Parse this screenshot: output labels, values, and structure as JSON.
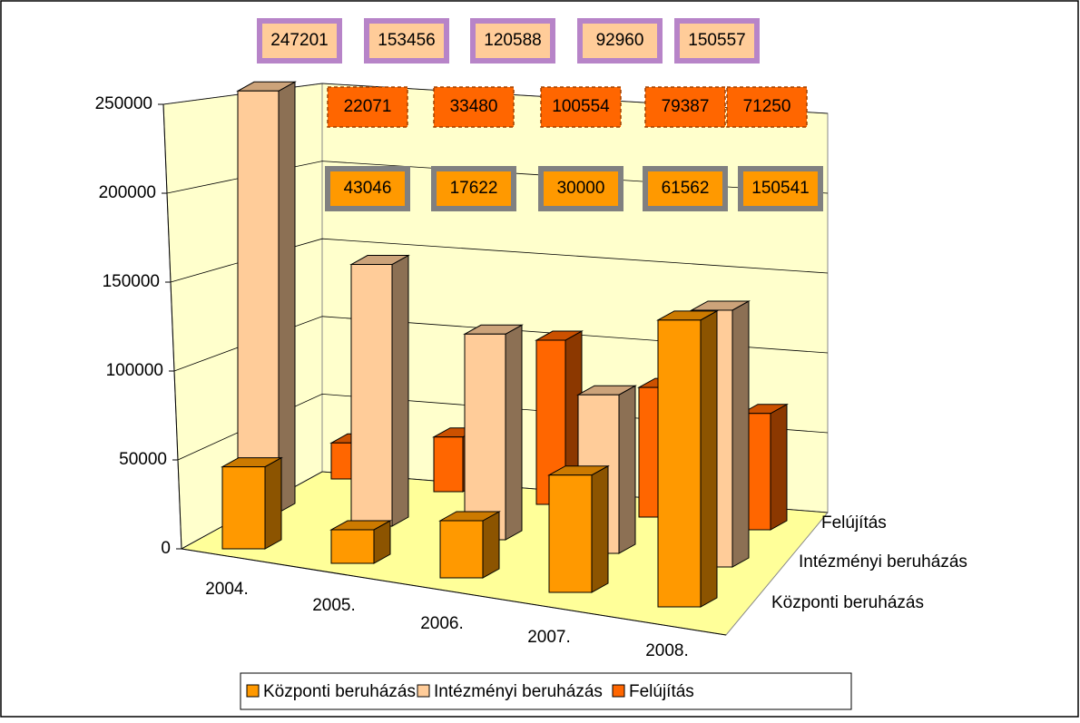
{
  "chart_data": {
    "type": "bar3d",
    "categories": [
      "2004.",
      "2005.",
      "2006.",
      "2007.",
      "2008."
    ],
    "series": [
      {
        "name": "Központi beruházás",
        "color": "#FF9900",
        "values": [
          43046,
          17622,
          30000,
          61562,
          150541
        ]
      },
      {
        "name": "Intézményi beruházás",
        "color": "#FFCC99",
        "values": [
          247201,
          153456,
          120588,
          92960,
          150557
        ]
      },
      {
        "name": "Felújítás",
        "color": "#FF6600",
        "values": [
          22071,
          33480,
          100554,
          79387,
          71250
        ]
      }
    ],
    "ylim": [
      0,
      250000
    ],
    "yticks": [
      0,
      50000,
      100000,
      150000,
      200000,
      250000
    ],
    "grid": true,
    "legend": "bottom"
  }
}
